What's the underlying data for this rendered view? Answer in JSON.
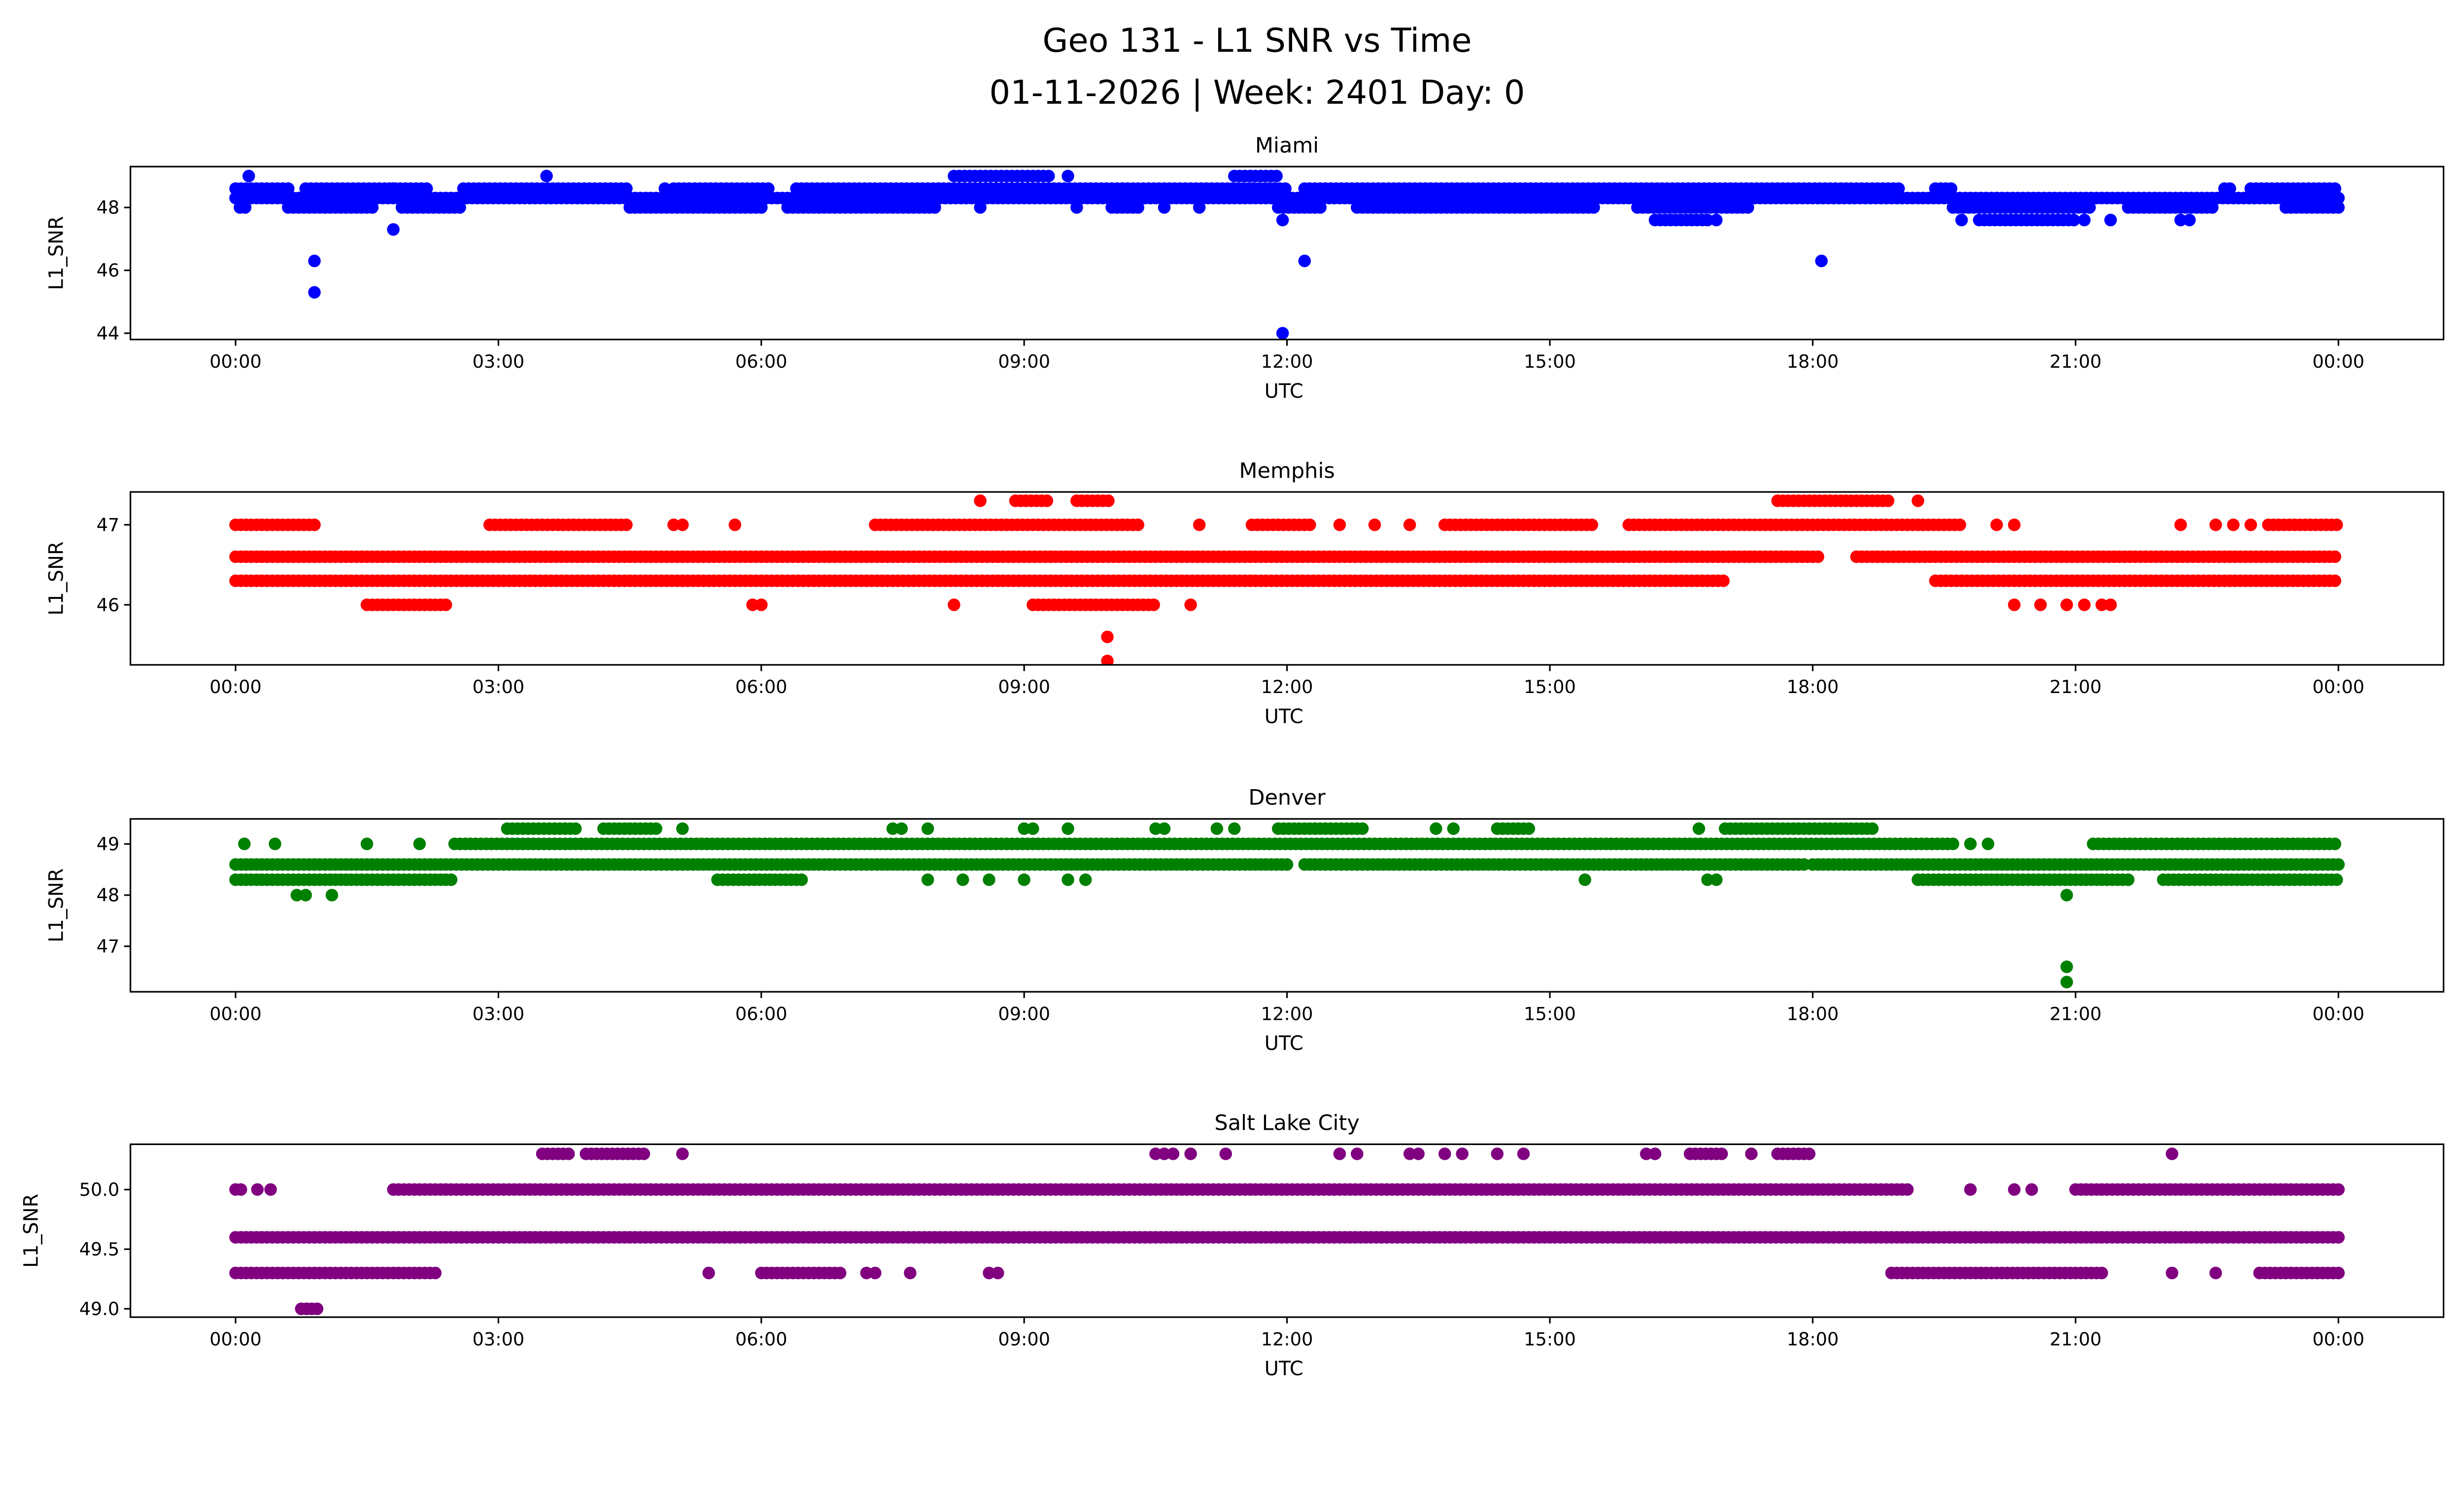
{
  "chart_data": {
    "type": "scatter",
    "title_line1": "Geo 131 - L1 SNR vs Time",
    "title_line2": "01-11-2026 | Week: 2401 Day: 0",
    "xlabel": "UTC",
    "ylabel": "L1_SNR",
    "xlim_hours": [
      -1.2,
      25.2
    ],
    "xticks": [
      0,
      3,
      6,
      9,
      12,
      15,
      18,
      21,
      24
    ],
    "xtick_labels": [
      "00:00",
      "03:00",
      "06:00",
      "09:00",
      "12:00",
      "15:00",
      "18:00",
      "21:00",
      "00:00"
    ],
    "panels": [
      {
        "title": "Miami",
        "color": "#0000ff",
        "ylim": [
          43.8,
          49.3
        ],
        "yticks": [
          44,
          46,
          48
        ],
        "ytick_labels": [
          "44",
          "46",
          "48"
        ],
        "levels": [
          {
            "y": 48.3,
            "ranges": [
              [
                0,
                24
              ]
            ],
            "points": []
          },
          {
            "y": 48.6,
            "ranges": [
              [
                0,
                0.6
              ],
              [
                0.8,
                2.2
              ],
              [
                2.6,
                4.5
              ],
              [
                5,
                6.1
              ],
              [
                6.4,
                12.0
              ],
              [
                12.2,
                17.6
              ],
              [
                17.6,
                19.0
              ],
              [
                19.4,
                19.6
              ],
              [
                22.7,
                22.8
              ],
              [
                23.0,
                24
              ]
            ],
            "points": [
              1.8,
              4.9
            ]
          },
          {
            "y": 48.0,
            "ranges": [
              [
                0.05,
                0.15
              ],
              [
                0.6,
                1.6
              ],
              [
                1.9,
                2.6
              ],
              [
                4.5,
                6.0
              ],
              [
                6.3,
                8.0
              ],
              [
                10.0,
                10.3
              ],
              [
                11.9,
                12.4
              ],
              [
                12.8,
                15.5
              ],
              [
                16.0,
                17.3
              ],
              [
                19.6,
                21.2
              ],
              [
                21.6,
                22.6
              ],
              [
                23.4,
                24
              ]
            ],
            "points": [
              8.5,
              9.6,
              10.6,
              11.0
            ]
          },
          {
            "y": 49.0,
            "ranges": [
              [
                8.2,
                9.3
              ],
              [
                11.4,
                11.9
              ]
            ],
            "points": [
              0.15,
              3.55,
              9.5
            ]
          },
          {
            "y": 47.6,
            "ranges": [
              [
                16.2,
                16.8
              ],
              [
                19.9,
                21.0
              ]
            ],
            "points": [
              11.95,
              16.9,
              19.7,
              21.1,
              21.4,
              22.2,
              22.3
            ]
          },
          {
            "y": 47.3,
            "ranges": [],
            "points": [
              1.8
            ]
          },
          {
            "y": 46.3,
            "ranges": [],
            "points": [
              0.9,
              12.2,
              18.1
            ]
          },
          {
            "y": 45.3,
            "ranges": [],
            "points": [
              0.9
            ]
          },
          {
            "y": 44.0,
            "ranges": [],
            "points": [
              11.95
            ]
          }
        ]
      },
      {
        "title": "Memphis",
        "color": "#ff0000",
        "ylim": [
          45.25,
          47.41
        ],
        "yticks": [
          46,
          47
        ],
        "ytick_labels": [
          "46",
          "47"
        ],
        "levels": [
          {
            "y": 46.6,
            "ranges": [
              [
                0,
                18.1
              ],
              [
                18.5,
                24
              ]
            ],
            "points": []
          },
          {
            "y": 46.3,
            "ranges": [
              [
                0,
                17.0
              ],
              [
                19.4,
                24
              ]
            ],
            "points": []
          },
          {
            "y": 47.0,
            "ranges": [
              [
                0,
                0.9
              ],
              [
                2.9,
                4.5
              ],
              [
                7.3,
                10.3
              ],
              [
                11.6,
                12.3
              ],
              [
                13.8,
                15.5
              ],
              [
                15.9,
                19.7
              ],
              [
                23.2,
                24
              ]
            ],
            "points": [
              5.0,
              5.1,
              5.7,
              11.0,
              12.6,
              13.0,
              13.4,
              20.1,
              20.3,
              22.2,
              22.6,
              22.8,
              23.0
            ]
          },
          {
            "y": 47.3,
            "ranges": [
              [
                8.9,
                9.3
              ],
              [
                9.6,
                10.0
              ],
              [
                17.6,
                18.9
              ]
            ],
            "points": [
              8.5,
              19.2
            ]
          },
          {
            "y": 46.0,
            "ranges": [
              [
                1.5,
                2.4
              ],
              [
                9.1,
                10.5
              ]
            ],
            "points": [
              5.9,
              6.0,
              8.2,
              10.9,
              20.3,
              20.6,
              20.9,
              21.1,
              21.3,
              21.4
            ]
          },
          {
            "y": 45.6,
            "ranges": [],
            "points": [
              9.95
            ]
          },
          {
            "y": 45.3,
            "ranges": [],
            "points": [
              9.95
            ]
          }
        ]
      },
      {
        "title": "Denver",
        "color": "#008000",
        "ylim": [
          46.11,
          49.49
        ],
        "yticks": [
          47,
          48,
          49
        ],
        "ytick_labels": [
          "47",
          "48",
          "49"
        ],
        "levels": [
          {
            "y": 48.6,
            "ranges": [
              [
                0,
                12.0
              ],
              [
                12.2,
                17.9
              ],
              [
                18.0,
                24
              ]
            ],
            "points": []
          },
          {
            "y": 48.3,
            "ranges": [
              [
                0,
                2.5
              ],
              [
                5.5,
                6.5
              ],
              [
                19.2,
                21.6
              ],
              [
                22.0,
                24
              ]
            ],
            "points": [
              7.9,
              8.3,
              8.6,
              9.0,
              9.5,
              9.7,
              15.4,
              16.8,
              16.9
            ]
          },
          {
            "y": 49.0,
            "ranges": [
              [
                2.5,
                19.6
              ],
              [
                21.2,
                24
              ]
            ],
            "points": [
              0.1,
              0.45,
              1.5,
              2.1,
              19.8,
              20.0
            ]
          },
          {
            "y": 49.3,
            "ranges": [
              [
                3.1,
                3.9
              ],
              [
                4.2,
                4.8
              ],
              [
                11.9,
                12.9
              ],
              [
                14.4,
                14.8
              ],
              [
                17.0,
                18.7
              ]
            ],
            "points": [
              5.1,
              7.5,
              7.6,
              7.9,
              9.0,
              9.1,
              9.5,
              10.5,
              10.6,
              11.2,
              11.4,
              13.7,
              13.9,
              16.7
            ]
          },
          {
            "y": 48.0,
            "ranges": [],
            "points": [
              0.7,
              0.8,
              1.1,
              20.9
            ]
          },
          {
            "y": 46.6,
            "ranges": [],
            "points": [
              20.9
            ]
          },
          {
            "y": 46.3,
            "ranges": [],
            "points": [
              20.9
            ]
          }
        ]
      },
      {
        "title": "Salt Lake City",
        "color": "#800080",
        "ylim": [
          48.93,
          50.38
        ],
        "yticks": [
          49.0,
          49.5,
          50.0
        ],
        "ytick_labels": [
          "49.0",
          "49.5",
          "50.0"
        ],
        "levels": [
          {
            "y": 49.6,
            "ranges": [
              [
                0,
                24
              ]
            ],
            "points": []
          },
          {
            "y": 50.0,
            "ranges": [
              [
                0,
                0.1
              ],
              [
                1.8,
                19.1
              ],
              [
                21.0,
                24
              ]
            ],
            "points": [
              0.25,
              0.4,
              19.8,
              20.3,
              20.5
            ]
          },
          {
            "y": 49.3,
            "ranges": [
              [
                0,
                2.3
              ],
              [
                6.0,
                6.9
              ],
              [
                18.9,
                21.3
              ],
              [
                23.1,
                24
              ]
            ],
            "points": [
              5.4,
              7.2,
              7.3,
              7.7,
              8.6,
              8.7,
              22.1,
              22.6
            ]
          },
          {
            "y": 50.3,
            "ranges": [
              [
                3.5,
                3.8
              ],
              [
                4.0,
                4.7
              ],
              [
                16.6,
                17.0
              ],
              [
                17.6,
                18.0
              ]
            ],
            "points": [
              5.1,
              10.5,
              10.6,
              10.7,
              10.9,
              11.3,
              12.6,
              12.8,
              13.4,
              13.5,
              13.8,
              14.0,
              14.4,
              14.7,
              16.1,
              16.2,
              17.3,
              22.1
            ]
          },
          {
            "y": 49.0,
            "ranges": [
              [
                0.75,
                0.95
              ]
            ],
            "points": []
          }
        ]
      }
    ]
  }
}
